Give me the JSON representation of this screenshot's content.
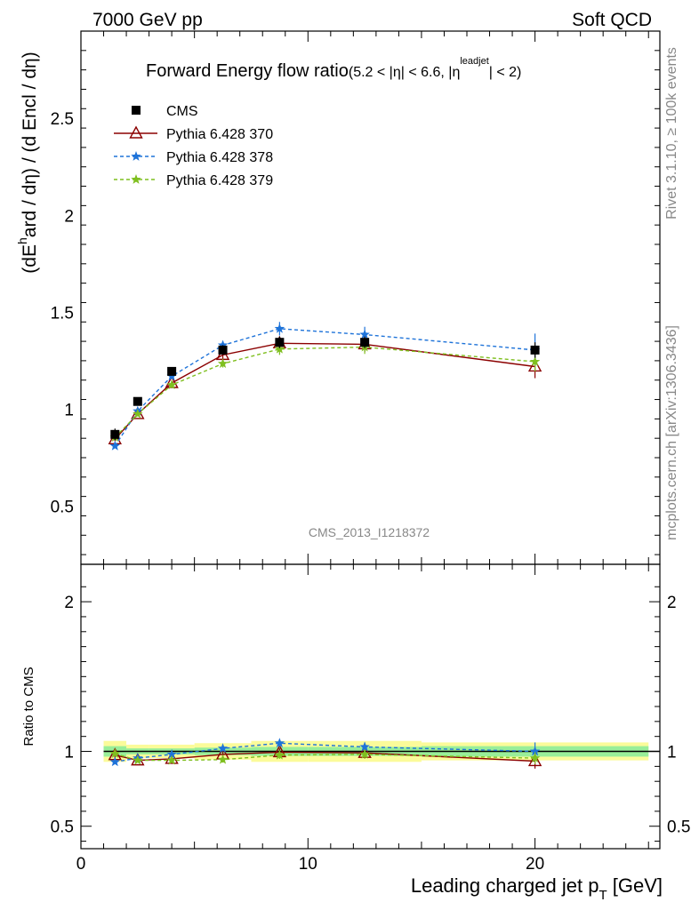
{
  "header": {
    "left": "7000 GeV pp",
    "right": "Soft QCD"
  },
  "side_labels": {
    "rivet": "Rivet 3.1.10, ≥ 100k events",
    "mcplots": "mcplots.cern.ch [arXiv:1306.3436]"
  },
  "watermark": "CMS_2013_I1218372",
  "colors": {
    "cms": "#000000",
    "p370": "#8b0000",
    "p378": "#1e73d9",
    "p379": "#7fbf1f",
    "band_outer": "#fbfb9a",
    "band_inner": "#99ee99"
  },
  "chart_data": [
    {
      "type": "scatter",
      "title": "Forward Energy flow ratio",
      "title_cut": "(5.2 < |η| < 6.6, |ηleadjet| < 2)",
      "title_cut_parts": [
        "(5.2 < |",
        "η",
        "| < 6.6, |",
        "η",
        "leadjet",
        "| < 2)"
      ],
      "ylabel_parts": [
        "(dE",
        "h",
        "ard / dη) / (d Encl / dη)"
      ],
      "xlim": [
        0,
        25.5
      ],
      "ylim": [
        0.2,
        2.95
      ],
      "log_y": false,
      "x_ticks": [
        0,
        10,
        20
      ],
      "y_ticks": [
        0.5,
        1,
        1.5,
        2,
        2.5
      ],
      "legend_position": "top-left",
      "legend": [
        "CMS",
        "Pythia 6.428 370",
        "Pythia 6.428 378",
        "Pythia 6.428 379"
      ],
      "series": [
        {
          "name": "CMS",
          "style": "data",
          "x": [
            1.5,
            2.5,
            4,
            6.25,
            8.75,
            12.5,
            20
          ],
          "y": [
            0.87,
            1.04,
            1.195,
            1.305,
            1.345,
            1.345,
            1.305
          ],
          "yerr": [
            0.03,
            0.02,
            0.02,
            0.025,
            0.03,
            0.03,
            0.04
          ]
        },
        {
          "name": "Pythia 6.428 370",
          "style": "mc370",
          "x": [
            1.5,
            2.5,
            4,
            6.25,
            8.75,
            12.5,
            20
          ],
          "y": [
            0.845,
            0.975,
            1.135,
            1.28,
            1.34,
            1.335,
            1.22
          ],
          "yerr": [
            0.01,
            0.01,
            0.015,
            0.02,
            0.03,
            0.04,
            0.06
          ]
        },
        {
          "name": "Pythia 6.428 378",
          "style": "mc378",
          "x": [
            1.5,
            2.5,
            4,
            6.25,
            8.75,
            12.5,
            20
          ],
          "y": [
            0.81,
            0.99,
            1.17,
            1.33,
            1.415,
            1.385,
            1.305
          ],
          "yerr": [
            0.01,
            0.01,
            0.015,
            0.02,
            0.035,
            0.04,
            0.085
          ]
        },
        {
          "name": "Pythia 6.428 379",
          "style": "mc379",
          "x": [
            1.5,
            2.5,
            4,
            6.25,
            8.75,
            12.5,
            20
          ],
          "y": [
            0.855,
            0.975,
            1.125,
            1.235,
            1.31,
            1.32,
            1.245
          ],
          "yerr": [
            0.01,
            0.01,
            0.015,
            0.02,
            0.03,
            0.035,
            0.05
          ]
        }
      ]
    },
    {
      "type": "scatter",
      "ylabel": "Ratio to CMS",
      "xlabel_parts": [
        "Leading charged jet p",
        "T",
        " [GeV]"
      ],
      "xlim": [
        0,
        25.5
      ],
      "ylim": [
        0.35,
        2.25
      ],
      "x_ticks": [
        0,
        10,
        20
      ],
      "y_ticks": [
        0.5,
        1,
        2
      ],
      "bands": {
        "edges": [
          1,
          2,
          3,
          5,
          7.5,
          10,
          15,
          25
        ],
        "outer": [
          0.07,
          0.045,
          0.045,
          0.055,
          0.07,
          0.07,
          0.06
        ],
        "inner": [
          0.035,
          0.02,
          0.02,
          0.025,
          0.03,
          0.03,
          0.035
        ]
      },
      "series": [
        {
          "name": "Pythia 6.428 370",
          "style": "mc370",
          "x": [
            1.5,
            2.5,
            4,
            6.25,
            8.75,
            12.5,
            20
          ],
          "y": [
            0.975,
            0.94,
            0.95,
            0.98,
            0.995,
            0.99,
            0.935
          ],
          "yerr": [
            0.02,
            0.01,
            0.015,
            0.02,
            0.025,
            0.03,
            0.05
          ]
        },
        {
          "name": "Pythia 6.428 378",
          "style": "mc378",
          "x": [
            1.5,
            2.5,
            4,
            6.25,
            8.75,
            12.5,
            20
          ],
          "y": [
            0.93,
            0.955,
            0.98,
            1.02,
            1.055,
            1.03,
            1.0
          ],
          "yerr": [
            0.01,
            0.01,
            0.015,
            0.02,
            0.025,
            0.03,
            0.06
          ]
        },
        {
          "name": "Pythia 6.428 379",
          "style": "mc379",
          "x": [
            1.5,
            2.5,
            4,
            6.25,
            8.75,
            12.5,
            20
          ],
          "y": [
            0.985,
            0.94,
            0.94,
            0.945,
            0.975,
            0.98,
            0.955
          ],
          "yerr": [
            0.01,
            0.01,
            0.015,
            0.02,
            0.025,
            0.03,
            0.04
          ]
        }
      ]
    }
  ]
}
